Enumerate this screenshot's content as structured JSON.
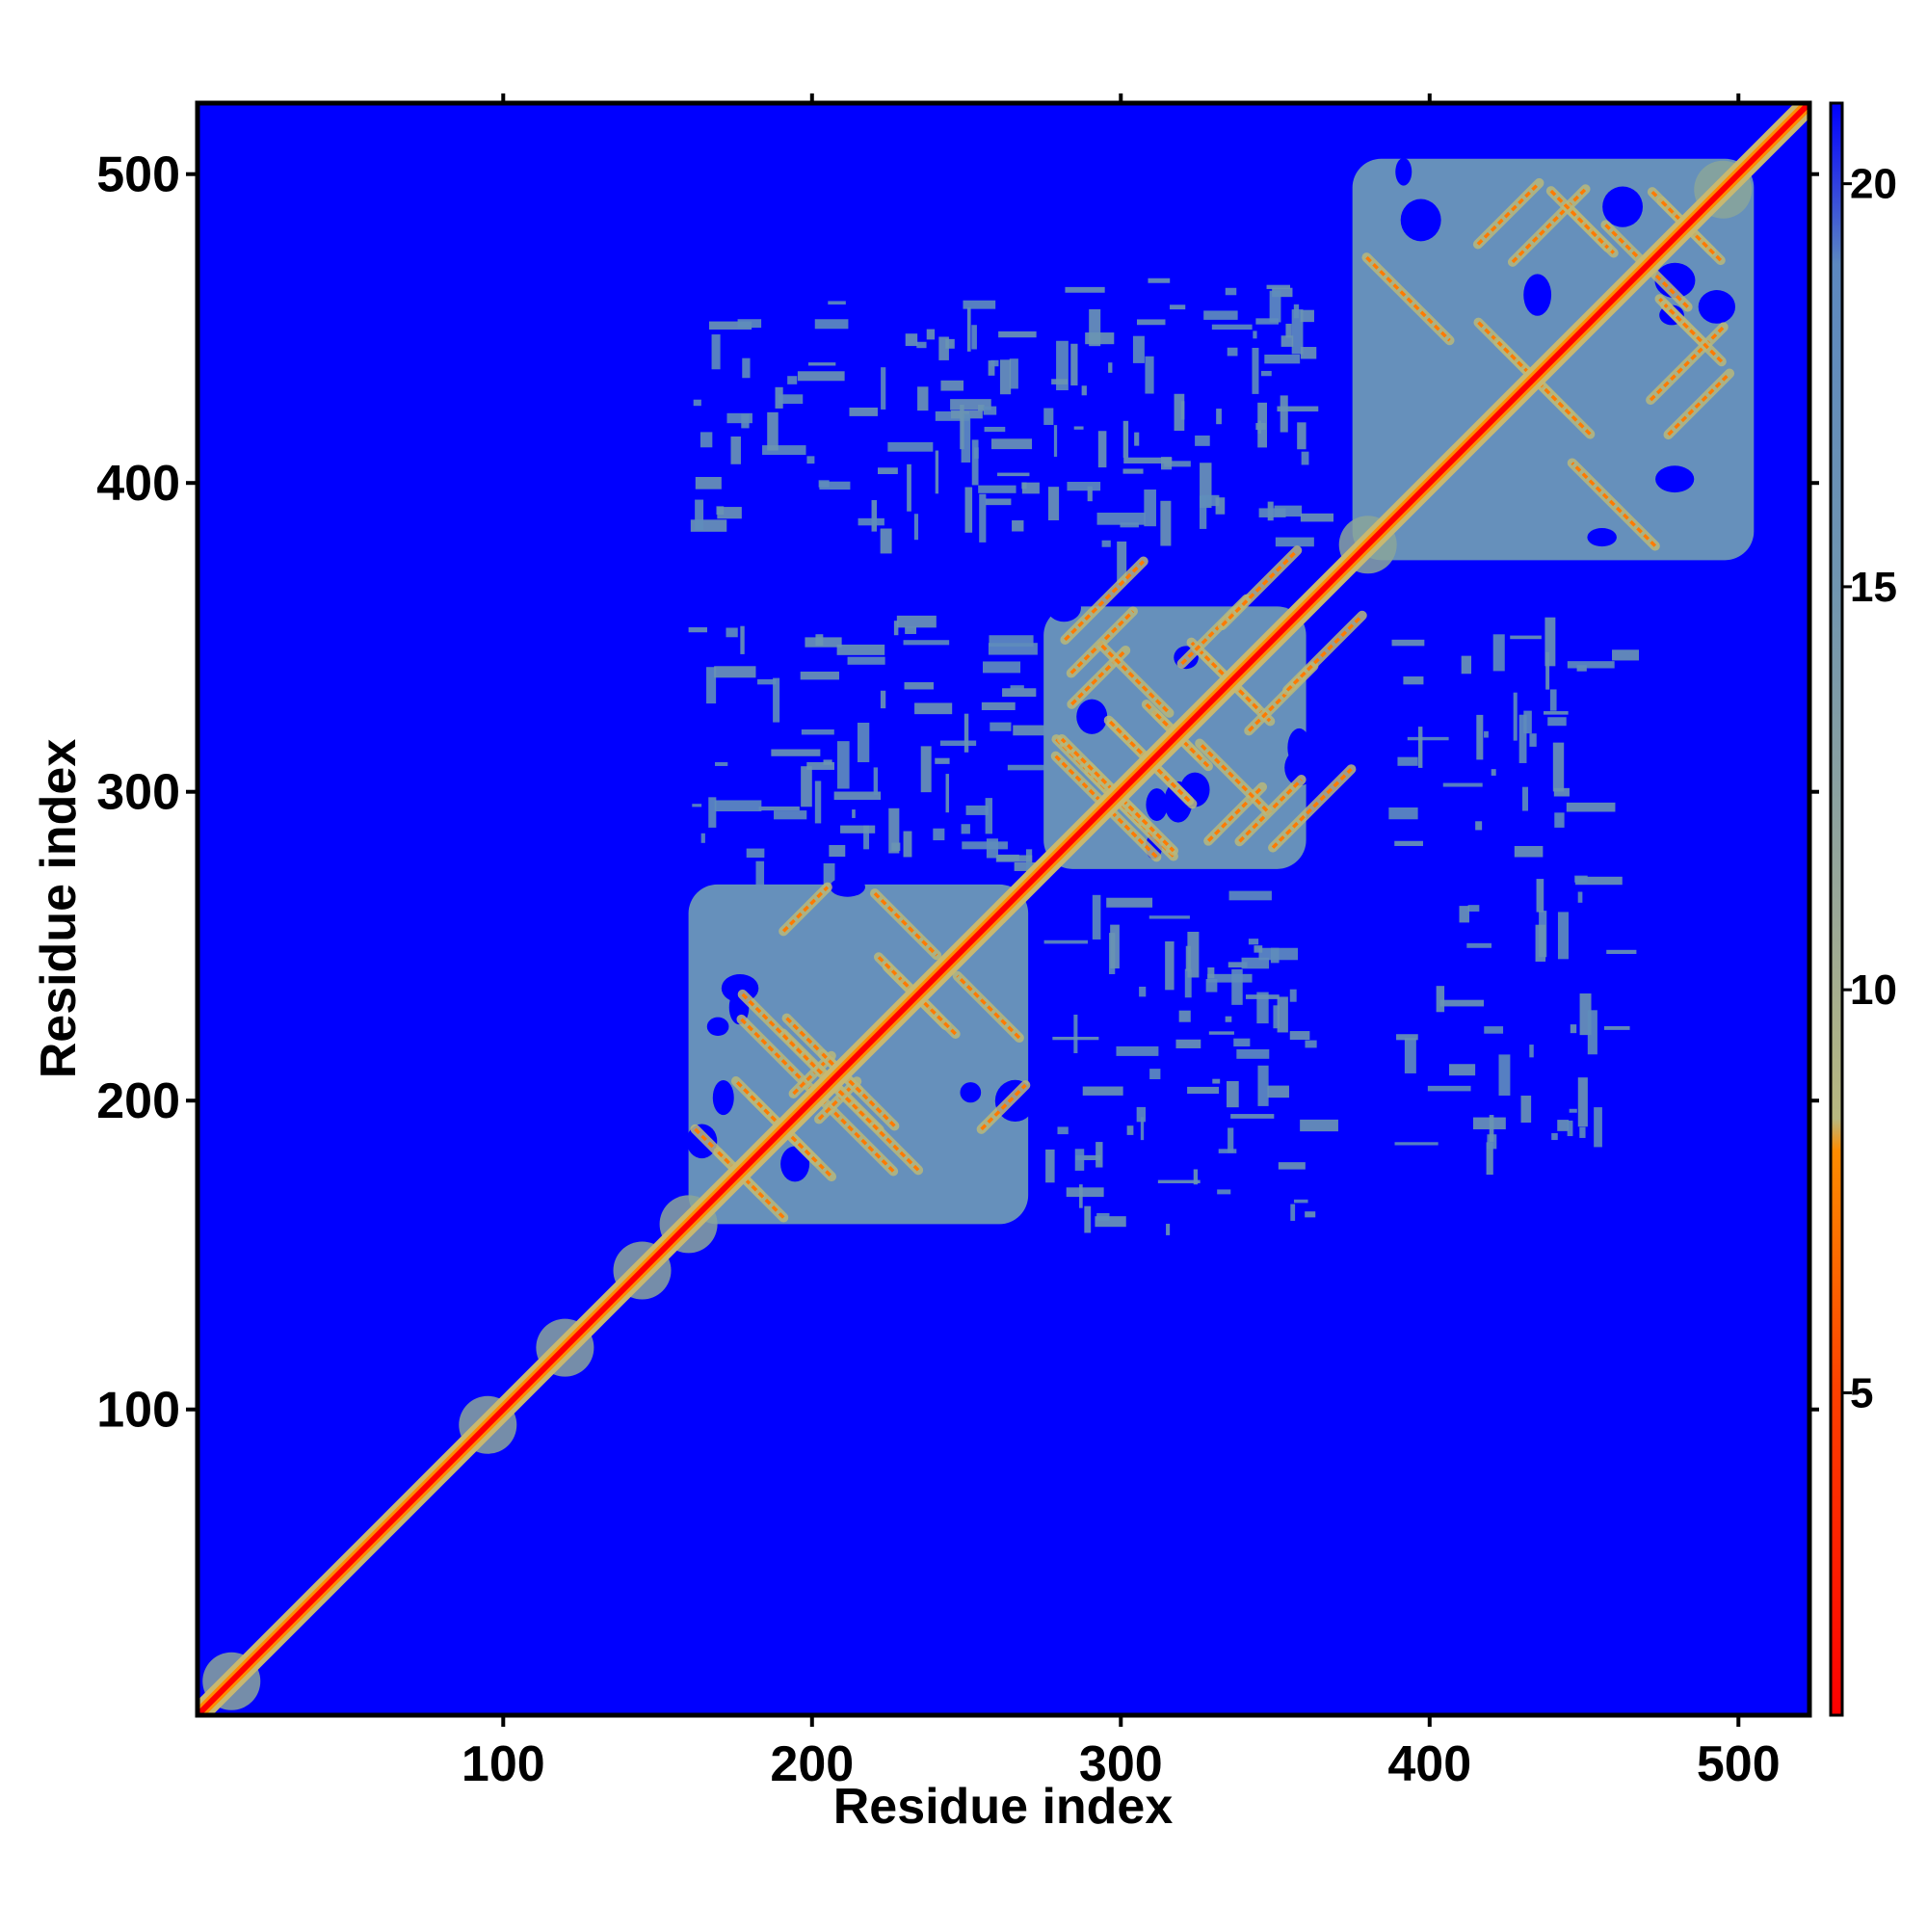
{
  "chart_data": {
    "type": "heatmap",
    "title": "",
    "xlabel": "Residue index",
    "ylabel": "Residue index",
    "xlim": [
      1,
      523
    ],
    "ylim": [
      1,
      523
    ],
    "x_ticks": [
      100,
      200,
      300,
      400,
      500
    ],
    "x_tick_labels": [
      "100",
      "200",
      "300",
      "400",
      "500"
    ],
    "y_ticks": [
      100,
      200,
      300,
      400,
      500
    ],
    "y_tick_labels": [
      "100",
      "200",
      "300",
      "400",
      "500"
    ],
    "colorbar": {
      "range": [
        1,
        21
      ],
      "ticks": [
        5,
        10,
        15,
        20
      ],
      "tick_labels": [
        "5",
        "10",
        "15",
        "20"
      ],
      "colors": {
        "low": "#ff0000",
        "mid_low": "#ff8c00",
        "mid": "#c8c87a",
        "mid_high": "#6a8fb8",
        "high": "#0000ff"
      }
    },
    "background_color": "#0000ff",
    "diagonal_color": "#ff0000",
    "domains": [
      {
        "start": 160,
        "end": 270
      },
      {
        "start": 275,
        "end": 360
      },
      {
        "start": 375,
        "end": 505
      }
    ],
    "inter_domain_contacts": [
      {
        "x": [
          160,
          270
        ],
        "y": [
          275,
          360
        ]
      },
      {
        "x": [
          275,
          360
        ],
        "y": [
          160,
          270
        ]
      },
      {
        "x": [
          160,
          270
        ],
        "y": [
          385,
          460
        ]
      },
      {
        "x": [
          275,
          360
        ],
        "y": [
          380,
          470
        ]
      },
      {
        "x": [
          380,
          460
        ],
        "y": [
          180,
          360
        ]
      }
    ]
  }
}
